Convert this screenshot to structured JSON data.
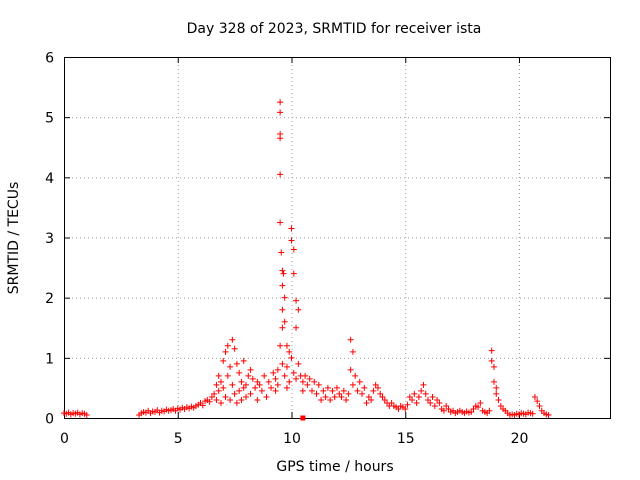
{
  "chart_data": {
    "type": "scatter",
    "title": "Day 328 of 2023, SRMTID for receiver ista",
    "xlabel": "GPS time / hours",
    "ylabel": "SRMTID / TECUs",
    "xlim": [
      0,
      24
    ],
    "ylim": [
      0,
      6
    ],
    "xticks": [
      "0",
      "5",
      "10",
      "15",
      "20"
    ],
    "xtick_values": [
      0,
      5,
      10,
      15,
      20
    ],
    "yticks": [
      "0",
      "1",
      "2",
      "3",
      "4",
      "5",
      "6"
    ],
    "ytick_values": [
      0,
      1,
      2,
      3,
      4,
      5,
      6
    ],
    "grid": true,
    "series_color": "#ff0000",
    "series": [
      {
        "name": "SRMTID",
        "marker": "plus",
        "x": [
          0.0,
          0.1,
          0.2,
          0.3,
          0.4,
          0.5,
          0.6,
          0.7,
          0.8,
          0.9,
          1.0,
          3.3,
          3.4,
          3.5,
          3.6,
          3.7,
          3.8,
          3.9,
          4.0,
          4.1,
          4.2,
          4.3,
          4.4,
          4.5,
          4.6,
          4.7,
          4.8,
          4.9,
          5.0,
          5.1,
          5.2,
          5.3,
          5.4,
          5.5,
          5.6,
          5.7,
          5.8,
          5.9,
          6.0,
          6.1,
          6.2,
          6.3,
          6.4,
          6.5,
          6.6,
          6.7,
          6.7,
          6.8,
          6.8,
          6.9,
          6.9,
          7.0,
          7.0,
          7.1,
          7.1,
          7.2,
          7.2,
          7.3,
          7.3,
          7.4,
          7.4,
          7.5,
          7.5,
          7.6,
          7.6,
          7.7,
          7.7,
          7.8,
          7.8,
          7.9,
          7.9,
          8.0,
          8.0,
          8.1,
          8.2,
          8.2,
          8.3,
          8.4,
          8.5,
          8.5,
          8.6,
          8.7,
          8.8,
          8.9,
          9.0,
          9.1,
          9.2,
          9.3,
          9.3,
          9.4,
          9.4,
          9.5,
          9.5,
          9.5,
          9.5,
          9.5,
          9.5,
          9.5,
          9.55,
          9.6,
          9.6,
          9.6,
          9.6,
          9.6,
          9.65,
          9.7,
          9.7,
          9.7,
          9.8,
          9.8,
          9.8,
          9.9,
          9.9,
          10.0,
          10.0,
          10.0,
          10.1,
          10.1,
          10.1,
          10.2,
          10.2,
          10.2,
          10.3,
          10.3,
          10.4,
          10.5,
          10.5,
          10.6,
          10.7,
          10.8,
          10.9,
          11.0,
          11.1,
          11.2,
          11.3,
          11.4,
          11.5,
          11.6,
          11.7,
          11.8,
          11.9,
          12.0,
          12.1,
          12.2,
          12.3,
          12.4,
          12.5,
          12.6,
          12.6,
          12.7,
          12.7,
          12.8,
          12.9,
          13.0,
          13.1,
          13.2,
          13.3,
          13.4,
          13.5,
          13.6,
          13.7,
          13.8,
          13.9,
          14.0,
          14.1,
          14.2,
          14.3,
          14.4,
          14.5,
          14.6,
          14.7,
          14.8,
          14.9,
          15.0,
          15.1,
          15.2,
          15.3,
          15.4,
          15.5,
          15.6,
          15.7,
          15.8,
          15.9,
          16.0,
          16.1,
          16.2,
          16.3,
          16.4,
          16.5,
          16.6,
          16.7,
          16.8,
          16.9,
          17.0,
          17.1,
          17.2,
          17.3,
          17.4,
          17.5,
          17.6,
          17.7,
          17.8,
          17.9,
          18.0,
          18.1,
          18.2,
          18.3,
          18.4,
          18.5,
          18.6,
          18.7,
          18.8,
          18.8,
          18.9,
          18.9,
          19.0,
          19.0,
          19.1,
          19.2,
          19.3,
          19.4,
          19.5,
          19.6,
          19.7,
          19.8,
          19.9,
          20.0,
          20.1,
          20.2,
          20.3,
          20.4,
          20.5,
          20.6,
          20.7,
          20.8,
          20.9,
          21.0,
          21.1,
          21.2,
          21.3
        ],
        "y": [
          0.08,
          0.07,
          0.09,
          0.06,
          0.08,
          0.07,
          0.09,
          0.06,
          0.08,
          0.07,
          0.05,
          0.05,
          0.08,
          0.1,
          0.09,
          0.12,
          0.08,
          0.11,
          0.1,
          0.13,
          0.09,
          0.12,
          0.11,
          0.14,
          0.12,
          0.13,
          0.15,
          0.12,
          0.16,
          0.14,
          0.17,
          0.15,
          0.18,
          0.16,
          0.19,
          0.17,
          0.2,
          0.22,
          0.25,
          0.21,
          0.28,
          0.3,
          0.27,
          0.35,
          0.4,
          0.55,
          0.3,
          0.7,
          0.45,
          0.6,
          0.25,
          0.95,
          0.5,
          1.1,
          0.35,
          1.2,
          0.7,
          0.3,
          0.85,
          1.3,
          0.55,
          1.15,
          0.4,
          0.9,
          0.25,
          0.75,
          0.45,
          0.6,
          0.3,
          0.95,
          0.5,
          0.55,
          0.35,
          0.7,
          0.8,
          0.4,
          0.65,
          0.5,
          0.6,
          0.3,
          0.55,
          0.45,
          0.7,
          0.35,
          0.6,
          0.5,
          0.75,
          0.45,
          0.65,
          0.8,
          0.55,
          5.25,
          5.08,
          4.72,
          4.65,
          4.05,
          3.25,
          1.2,
          2.75,
          2.45,
          2.2,
          1.8,
          1.5,
          0.9,
          2.4,
          2.0,
          1.6,
          0.7,
          1.2,
          0.85,
          0.5,
          1.1,
          0.6,
          3.15,
          2.95,
          1.0,
          2.8,
          2.4,
          0.75,
          1.95,
          1.5,
          0.65,
          1.8,
          0.9,
          0.7,
          0.6,
          0.45,
          0.7,
          0.55,
          0.65,
          0.45,
          0.6,
          0.4,
          0.55,
          0.3,
          0.45,
          0.35,
          0.5,
          0.3,
          0.45,
          0.35,
          0.5,
          0.4,
          0.35,
          0.45,
          0.3,
          0.4,
          1.3,
          0.8,
          1.1,
          0.55,
          0.7,
          0.45,
          0.6,
          0.4,
          0.5,
          0.25,
          0.35,
          0.3,
          0.45,
          0.55,
          0.5,
          0.4,
          0.35,
          0.3,
          0.25,
          0.2,
          0.25,
          0.2,
          0.18,
          0.15,
          0.2,
          0.18,
          0.15,
          0.22,
          0.35,
          0.3,
          0.4,
          0.25,
          0.35,
          0.45,
          0.55,
          0.4,
          0.3,
          0.25,
          0.35,
          0.2,
          0.3,
          0.25,
          0.15,
          0.12,
          0.2,
          0.15,
          0.1,
          0.12,
          0.08,
          0.1,
          0.12,
          0.1,
          0.08,
          0.11,
          0.09,
          0.1,
          0.15,
          0.2,
          0.18,
          0.25,
          0.12,
          0.1,
          0.08,
          0.12,
          1.12,
          0.95,
          0.85,
          0.6,
          0.5,
          0.4,
          0.3,
          0.2,
          0.15,
          0.12,
          0.08,
          0.05,
          0.06,
          0.05,
          0.07,
          0.06,
          0.08,
          0.07,
          0.06,
          0.09,
          0.08,
          0.07,
          0.35,
          0.28,
          0.2,
          0.12,
          0.08,
          0.06,
          0.05
        ]
      }
    ],
    "outliers_marker": "square",
    "outliers": [
      {
        "x": 10.5,
        "y": 0.0
      }
    ]
  }
}
